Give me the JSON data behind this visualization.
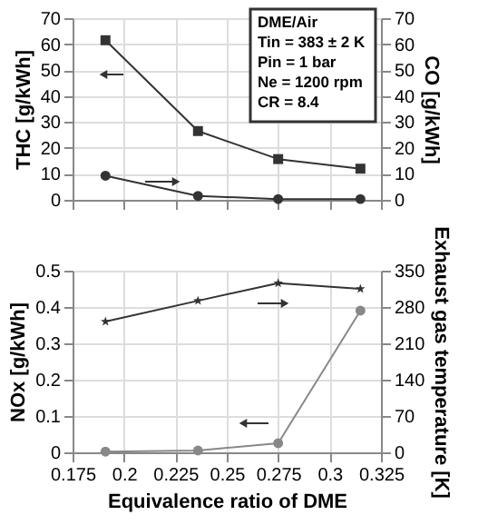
{
  "chart_data": [
    {
      "type": "line",
      "x": [
        0.191,
        0.236,
        0.275,
        0.315
      ],
      "ylabel": "THC [g/kWh]",
      "y2label": "CO [g/kWh]",
      "xlim": [
        0.175,
        0.325
      ],
      "xticks": [
        0.175,
        0.2,
        0.225,
        0.25,
        0.275,
        0.3,
        0.325
      ],
      "ylim": [
        0,
        70
      ],
      "yticks": [
        0,
        10,
        20,
        30,
        40,
        50,
        60,
        70
      ],
      "y2lim": [
        0,
        70
      ],
      "y2ticks": [
        0,
        10,
        20,
        30,
        40,
        50,
        60,
        70
      ],
      "tick_labels": "y",
      "grid": true,
      "line_style": "solid",
      "annotations": [
        "DME/Air",
        "Tin = 383 ± 2 K",
        "Pin = 1 bar",
        "Ne = 1200 rpm",
        "CR = 8.4"
      ],
      "series": [
        {
          "color": "#333333",
          "marker": "square",
          "values": [
            61.5,
            26.5,
            15.7,
            12
          ]
        },
        {
          "color": "#333333",
          "marker": "circle",
          "axis": "y2",
          "values": [
            9.3,
            1.5,
            0.3,
            0.3
          ]
        }
      ]
    },
    {
      "type": "line",
      "x": [
        0.191,
        0.236,
        0.275,
        0.315
      ],
      "xlabel": "Equivalence  ratio of DME",
      "ylabel": "NOx [g/kWh]",
      "y2label": "Exhaust  gas  temperature [K]",
      "xlim": [
        0.175,
        0.325
      ],
      "xticks": [
        0.175,
        0.2,
        0.225,
        0.25,
        0.275,
        0.3,
        0.325
      ],
      "ylim": [
        0,
        0.5
      ],
      "yticks": [
        0,
        0.1,
        0.2,
        0.3,
        0.4,
        0.5
      ],
      "y2lim": [
        0,
        350
      ],
      "y2ticks": [
        0,
        70,
        140,
        210,
        280,
        350
      ],
      "grid": true,
      "line_style": "solid",
      "series": [
        {
          "color": "#888888",
          "marker": "circle",
          "values": [
            0.002,
            0.005,
            0.025,
            0.39
          ]
        },
        {
          "color": "#333333",
          "marker": "star",
          "axis": "y2",
          "values": [
            252,
            292,
            326,
            315
          ]
        }
      ]
    }
  ]
}
